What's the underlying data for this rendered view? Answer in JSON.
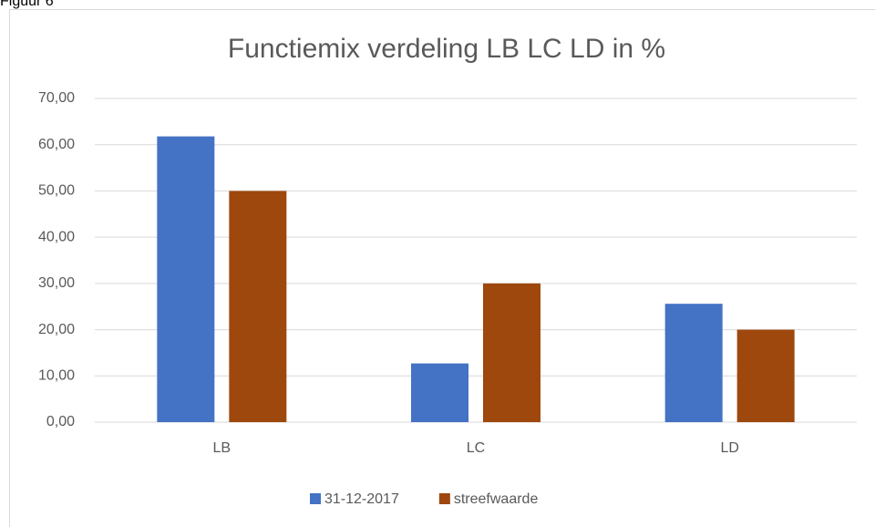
{
  "caption": "Figuur 6",
  "chart_data": {
    "type": "bar",
    "title": "Functiemix verdeling LB LC LD  in %",
    "categories": [
      "LB",
      "LC",
      "LD"
    ],
    "series": [
      {
        "name": "31-12-2017",
        "color": "#4472c4",
        "values": [
          61.8,
          12.7,
          25.6
        ]
      },
      {
        "name": "streefwaarde",
        "color": "#9e480e",
        "values": [
          50,
          30,
          20
        ]
      }
    ],
    "ylim": [
      0,
      70
    ],
    "yticks": [
      {
        "value": 0,
        "label": "0,00"
      },
      {
        "value": 10,
        "label": "10,00"
      },
      {
        "value": 20,
        "label": "20,00"
      },
      {
        "value": 30,
        "label": "30,00"
      },
      {
        "value": 40,
        "label": "40,00"
      },
      {
        "value": 50,
        "label": "50,00"
      },
      {
        "value": 60,
        "label": "60,00"
      },
      {
        "value": 70,
        "label": "70,00"
      }
    ],
    "grid": true,
    "legend": "bottom"
  }
}
